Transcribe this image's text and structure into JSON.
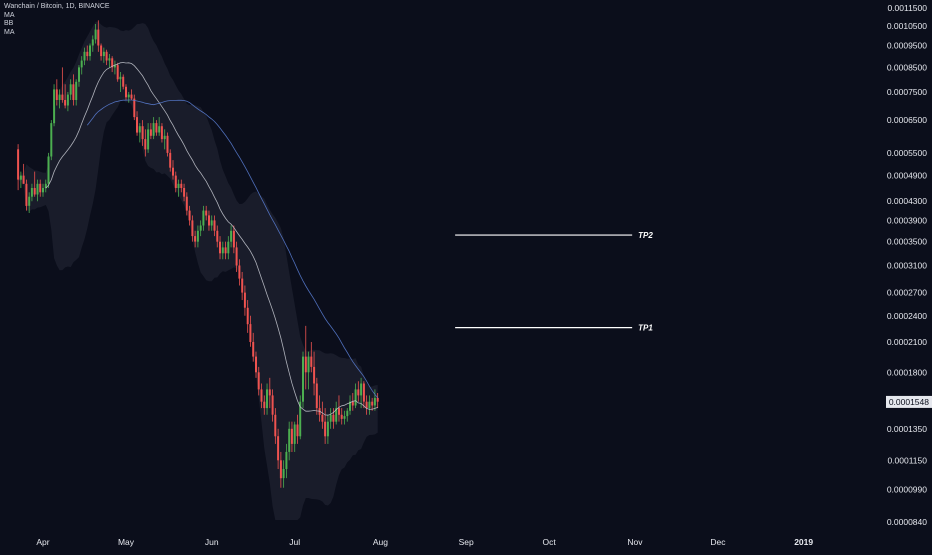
{
  "legend": {
    "symbol_line": "Wanchain / Bitcoin, 1D, BINANCE",
    "indicators": [
      "MA",
      "BB",
      "MA"
    ]
  },
  "chart_data": {
    "type": "candlestick",
    "title": "Wanchain / Bitcoin, 1D, BINANCE",
    "xlabel": "",
    "ylabel": "",
    "y_scale": "log",
    "ylim": [
      8.4e-05,
      0.00115
    ],
    "grid": false,
    "y_ticks": [
      "0.0011500",
      "0.0010500",
      "0.0009500",
      "0.0008500",
      "0.0007500",
      "0.0006500",
      "0.0005500",
      "0.0004900",
      "0.0004300",
      "0.0003900",
      "0.0003500",
      "0.0003100",
      "0.0002700",
      "0.0002400",
      "0.0002100",
      "0.0001800",
      "0.0001350",
      "0.0001150",
      "0.0000990",
      "0.0000840"
    ],
    "x_ticks": [
      "Apr",
      "May",
      "Jun",
      "Jul",
      "Aug",
      "Sep",
      "Oct",
      "Nov",
      "Dec",
      "2019"
    ],
    "last_price": "0.0001548",
    "colors": {
      "up": "#4caf50",
      "down": "#ef5350",
      "ma_fast": "#c9cbd4",
      "ma_slow": "#5b7fd6",
      "bb_fill": "#1b1e2c",
      "background": "#0b0e1b"
    },
    "targets": [
      {
        "label": "TP2",
        "value": 0.000362,
        "from": "2018-08-28",
        "to": "2018-10-31"
      },
      {
        "label": "TP1",
        "value": 0.000226,
        "from": "2018-08-28",
        "to": "2018-10-31"
      }
    ],
    "ohlc": {
      "start_date": "2018-03-23",
      "candles": [
        [
          0.00056,
          0.000575,
          0.000455,
          0.00048
        ],
        [
          0.00048,
          0.0005,
          0.00046,
          0.00049
        ],
        [
          0.00049,
          0.00052,
          0.00047,
          0.00047
        ],
        [
          0.00047,
          0.00048,
          0.00041,
          0.00042
        ],
        [
          0.00042,
          0.00045,
          0.000405,
          0.00044
        ],
        [
          0.00044,
          0.00047,
          0.00043,
          0.00046
        ],
        [
          0.00046,
          0.0005,
          0.00044,
          0.000445
        ],
        [
          0.000445,
          0.00048,
          0.00043,
          0.00047
        ],
        [
          0.00047,
          0.00048,
          0.00044,
          0.00045
        ],
        [
          0.00045,
          0.00047,
          0.00044,
          0.00046
        ],
        [
          0.00046,
          0.00048,
          0.00045,
          0.00047
        ],
        [
          0.00047,
          0.00055,
          0.00046,
          0.00054
        ],
        [
          0.00054,
          0.00065,
          0.00053,
          0.00064
        ],
        [
          0.00064,
          0.00078,
          0.00063,
          0.00076
        ],
        [
          0.00076,
          0.0008,
          0.0007,
          0.00072
        ],
        [
          0.00072,
          0.00076,
          0.00069,
          0.00074
        ],
        [
          0.00074,
          0.00085,
          0.00071,
          0.00072
        ],
        [
          0.00072,
          0.00078,
          0.00069,
          0.0007
        ],
        [
          0.0007,
          0.00075,
          0.00068,
          0.00074
        ],
        [
          0.00074,
          0.0008,
          0.00072,
          0.00078
        ],
        [
          0.00078,
          0.00082,
          0.0007,
          0.00072
        ],
        [
          0.00072,
          0.0008,
          0.0007,
          0.00079
        ],
        [
          0.00079,
          0.00086,
          0.00077,
          0.00085
        ],
        [
          0.00085,
          0.0009,
          0.00082,
          0.00088
        ],
        [
          0.00088,
          0.00094,
          0.00086,
          0.00092
        ],
        [
          0.00092,
          0.00095,
          0.00088,
          0.0009
        ],
        [
          0.0009,
          0.00096,
          0.00088,
          0.00095
        ],
        [
          0.00095,
          0.001,
          0.00092,
          0.00098
        ],
        [
          0.00098,
          0.00106,
          0.00096,
          0.00103
        ],
        [
          0.00103,
          0.00108,
          0.00092,
          0.00095
        ],
        [
          0.00095,
          0.00096,
          0.00088,
          0.0009
        ],
        [
          0.0009,
          0.00094,
          0.00087,
          0.00092
        ],
        [
          0.00092,
          0.00093,
          0.00086,
          0.00088
        ],
        [
          0.00088,
          0.00091,
          0.00085,
          0.00089
        ],
        [
          0.00089,
          0.0009,
          0.00083,
          0.00085
        ],
        [
          0.00085,
          0.00088,
          0.00082,
          0.00086
        ],
        [
          0.00086,
          0.00087,
          0.00079,
          0.0008
        ],
        [
          0.0008,
          0.00083,
          0.00075,
          0.00081
        ],
        [
          0.00081,
          0.00082,
          0.00076,
          0.00077
        ],
        [
          0.00077,
          0.00078,
          0.00072,
          0.00073
        ],
        [
          0.00073,
          0.00075,
          0.00071,
          0.00074
        ],
        [
          0.00074,
          0.00076,
          0.00072,
          0.000725
        ],
        [
          0.000725,
          0.00074,
          0.00065,
          0.00066
        ],
        [
          0.00066,
          0.00068,
          0.0006,
          0.00061
        ],
        [
          0.00061,
          0.00064,
          0.00058,
          0.00063
        ],
        [
          0.00063,
          0.00065,
          0.00057,
          0.00059
        ],
        [
          0.00059,
          0.00062,
          0.00054,
          0.00056
        ],
        [
          0.00056,
          0.00064,
          0.00055,
          0.00062
        ],
        [
          0.00062,
          0.00064,
          0.00059,
          0.0006
        ],
        [
          0.0006,
          0.00066,
          0.00059,
          0.00064
        ],
        [
          0.00064,
          0.00065,
          0.0006,
          0.00061
        ],
        [
          0.00061,
          0.00066,
          0.0006,
          0.00063
        ],
        [
          0.00063,
          0.00064,
          0.00058,
          0.00059
        ],
        [
          0.00059,
          0.00062,
          0.00056,
          0.0006
        ],
        [
          0.0006,
          0.00061,
          0.00054,
          0.00055
        ],
        [
          0.00055,
          0.00056,
          0.0005,
          0.00051
        ],
        [
          0.00051,
          0.00053,
          0.00048,
          0.00049
        ],
        [
          0.00049,
          0.0005,
          0.00045,
          0.00046
        ],
        [
          0.00046,
          0.00048,
          0.00044,
          0.00047
        ],
        [
          0.00047,
          0.00048,
          0.00045,
          0.00046
        ],
        [
          0.00046,
          0.00047,
          0.00043,
          0.00044
        ],
        [
          0.00044,
          0.00045,
          0.0004,
          0.00041
        ],
        [
          0.00041,
          0.00042,
          0.00038,
          0.00039
        ],
        [
          0.00039,
          0.0004,
          0.00035,
          0.00036
        ],
        [
          0.00036,
          0.00037,
          0.00034,
          0.00035
        ],
        [
          0.00035,
          0.00038,
          0.00034,
          0.00037
        ],
        [
          0.00037,
          0.00039,
          0.00036,
          0.00038
        ],
        [
          0.00038,
          0.00042,
          0.00037,
          0.00041
        ],
        [
          0.00041,
          0.00042,
          0.00039,
          0.0004
        ],
        [
          0.0004,
          0.00041,
          0.00037,
          0.00038
        ],
        [
          0.00038,
          0.0004,
          0.00037,
          0.00039
        ],
        [
          0.00039,
          0.0004,
          0.00036,
          0.00037
        ],
        [
          0.00037,
          0.00038,
          0.00034,
          0.00035
        ],
        [
          0.00035,
          0.00036,
          0.00032,
          0.00033
        ],
        [
          0.00033,
          0.00035,
          0.00032,
          0.00034
        ],
        [
          0.00034,
          0.00035,
          0.00032,
          0.00033
        ],
        [
          0.00033,
          0.00036,
          0.00032,
          0.00035
        ],
        [
          0.00035,
          0.00038,
          0.00034,
          0.00037
        ],
        [
          0.00037,
          0.00038,
          0.00033,
          0.00034
        ],
        [
          0.00034,
          0.00035,
          0.0003,
          0.00031
        ],
        [
          0.00031,
          0.00032,
          0.00028,
          0.00029
        ],
        [
          0.00029,
          0.0003,
          0.00026,
          0.00027
        ],
        [
          0.00027,
          0.00028,
          0.00024,
          0.00025
        ],
        [
          0.00025,
          0.00026,
          0.00022,
          0.00023
        ],
        [
          0.00023,
          0.00024,
          0.000205,
          0.00021
        ],
        [
          0.00021,
          0.00022,
          0.00019,
          0.000195
        ],
        [
          0.000195,
          0.0002,
          0.000175,
          0.00018
        ],
        [
          0.00018,
          0.000185,
          0.00016,
          0.000165
        ],
        [
          0.000165,
          0.00017,
          0.00015,
          0.000155
        ],
        [
          0.000155,
          0.00016,
          0.000145,
          0.00015
        ],
        [
          0.00015,
          0.00017,
          0.000145,
          0.000165
        ],
        [
          0.000165,
          0.000175,
          0.00015,
          0.00016
        ],
        [
          0.00016,
          0.000165,
          0.00014,
          0.000145
        ],
        [
          0.000145,
          0.00015,
          0.000125,
          0.00013
        ],
        [
          0.00013,
          0.000135,
          0.00011,
          0.000115
        ],
        [
          0.000115,
          0.00012,
          0.0001,
          0.000105
        ],
        [
          0.000105,
          0.000115,
          0.0001,
          0.00011
        ],
        [
          0.00011,
          0.000125,
          0.000105,
          0.00012
        ],
        [
          0.00012,
          0.00014,
          0.000115,
          0.000135
        ],
        [
          0.000135,
          0.00014,
          0.00012,
          0.000125
        ],
        [
          0.000125,
          0.00014,
          0.00012,
          0.000138
        ],
        [
          0.000138,
          0.000145,
          0.000125,
          0.00013
        ],
        [
          0.00013,
          0.00016,
          0.000128,
          0.000155
        ],
        [
          0.000155,
          0.0002,
          0.00015,
          0.000195
        ],
        [
          0.000195,
          0.000228,
          0.000165,
          0.00018
        ],
        [
          0.00018,
          0.0002,
          0.000165,
          0.000195
        ],
        [
          0.000195,
          0.00021,
          0.00018,
          0.000185
        ],
        [
          0.000185,
          0.0002,
          0.00016,
          0.00017
        ],
        [
          0.00017,
          0.000175,
          0.000145,
          0.00015
        ],
        [
          0.00015,
          0.00016,
          0.00014,
          0.000145
        ],
        [
          0.000145,
          0.000155,
          0.000135,
          0.00014
        ],
        [
          0.00014,
          0.00015,
          0.000125,
          0.00013
        ],
        [
          0.00013,
          0.000145,
          0.000125,
          0.00014
        ],
        [
          0.00014,
          0.00015,
          0.000135,
          0.000145
        ],
        [
          0.000145,
          0.00015,
          0.000135,
          0.00014
        ],
        [
          0.00014,
          0.000155,
          0.000138,
          0.00015
        ],
        [
          0.00015,
          0.00016,
          0.00014,
          0.000145
        ],
        [
          0.000145,
          0.00015,
          0.000138,
          0.000142
        ],
        [
          0.000142,
          0.000148,
          0.000138,
          0.000144
        ],
        [
          0.000144,
          0.00015,
          0.00014,
          0.000148
        ],
        [
          0.000148,
          0.00016,
          0.000145,
          0.000155
        ],
        [
          0.000155,
          0.000162,
          0.000148,
          0.000152
        ],
        [
          0.000152,
          0.00017,
          0.00015,
          0.000165
        ],
        [
          0.000165,
          0.000172,
          0.000155,
          0.00016
        ],
        [
          0.00016,
          0.000175,
          0.00015,
          0.00017
        ],
        [
          0.00017,
          0.000172,
          0.00015,
          0.000155
        ],
        [
          0.000155,
          0.00016,
          0.000145,
          0.00015
        ],
        [
          0.00015,
          0.00016,
          0.000145,
          0.000155
        ],
        [
          0.000155,
          0.000158,
          0.000148,
          0.000152
        ],
        [
          0.000152,
          0.000165,
          0.000148,
          0.000158
        ],
        [
          0.000158,
          0.000162,
          0.00015,
          0.000155
        ]
      ]
    }
  }
}
